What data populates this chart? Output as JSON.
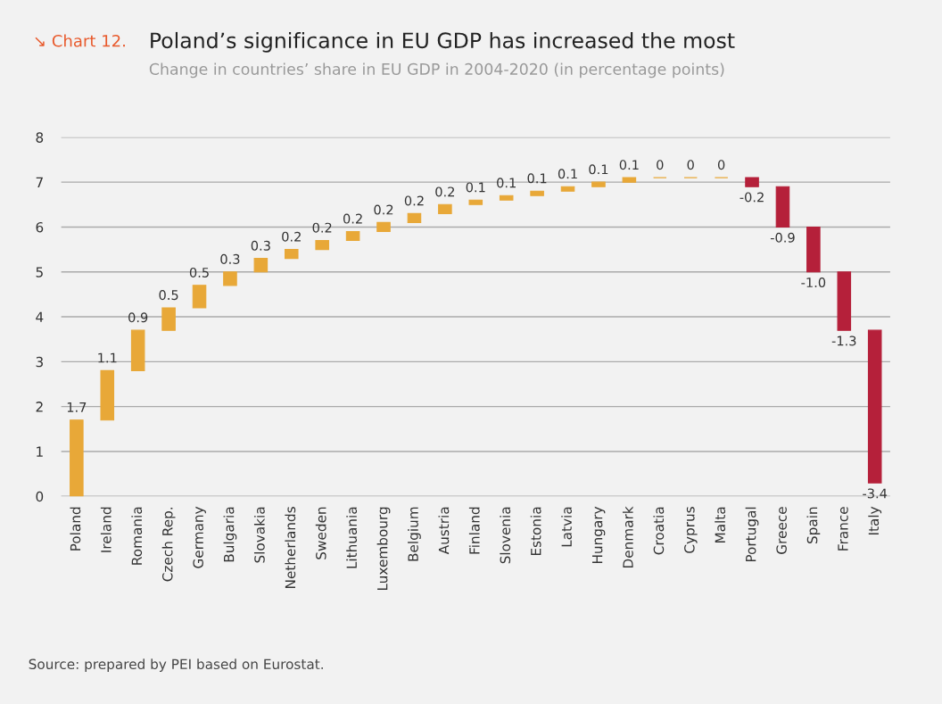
{
  "chart_data": {
    "type": "bar",
    "title": "Poland’s significance in EU GDP has increased the most",
    "subtitle": "Change in countries’ share in EU GDP in 2004-2020 (in percentage points)",
    "annotations": [
      "↘ Chart 12.",
      "Source: prepared by PEI based on Eurostat."
    ],
    "categories": [
      "Poland",
      "Ireland",
      "Romania",
      "Czech Rep.",
      "Germany",
      "Bulgaria",
      "Slovakia",
      "Netherlands",
      "Sweden",
      "Lithuania",
      "Luxembourg",
      "Belgium",
      "Austria",
      "Finland",
      "Slovenia",
      "Estonia",
      "Latvia",
      "Hungary",
      "Denmark",
      "Croatia",
      "Cyprus",
      "Malta",
      "Portugal",
      "Greece",
      "Spain",
      "France",
      "Italy"
    ],
    "values": [
      1.7,
      1.1,
      0.9,
      0.5,
      0.5,
      0.3,
      0.3,
      0.2,
      0.2,
      0.2,
      0.2,
      0.2,
      0.2,
      0.1,
      0.1,
      0.1,
      0.1,
      0.1,
      0.1,
      0,
      0,
      0,
      -0.2,
      -0.9,
      -1.0,
      -1.3,
      -3.4
    ],
    "base": [
      0,
      1.7,
      2.8,
      3.7,
      4.2,
      4.7,
      5.0,
      5.3,
      5.5,
      5.7,
      5.9,
      6.1,
      6.3,
      6.5,
      6.6,
      6.7,
      6.8,
      6.9,
      7.0,
      7.1,
      7.1,
      7.1,
      7.1,
      6.9,
      6.0,
      5.0,
      3.7
    ],
    "colors": [
      "#e8a838",
      "#e8a838",
      "#e8a838",
      "#e8a838",
      "#e8a838",
      "#e8a838",
      "#e8a838",
      "#e8a838",
      "#e8a838",
      "#e8a838",
      "#e8a838",
      "#e8a838",
      "#e8a838",
      "#e8a838",
      "#e8a838",
      "#e8a838",
      "#e8a838",
      "#e8a838",
      "#e8a838",
      "#e8a838",
      "#e8a838",
      "#e8a838",
      "#b5203a",
      "#b5203a",
      "#b5203a",
      "#b5203a",
      "#b5203a"
    ],
    "value_labels": [
      "1.7",
      "1.1",
      "0.9",
      "0.5",
      "0.5",
      "0.3",
      "0.3",
      "0.2",
      "0.2",
      "0.2",
      "0.2",
      "0.2",
      "0.2",
      "0.1",
      "0.1",
      "0.1",
      "0.1",
      "0.1",
      "0.1",
      "0",
      "0",
      "0",
      "-0.2",
      "-0.9",
      "-1.0",
      "-1.3",
      "-3.4"
    ],
    "ylim": [
      0,
      8
    ],
    "yticks": [
      0,
      1,
      2,
      3,
      4,
      5,
      6,
      7,
      8
    ],
    "grid": "y"
  }
}
